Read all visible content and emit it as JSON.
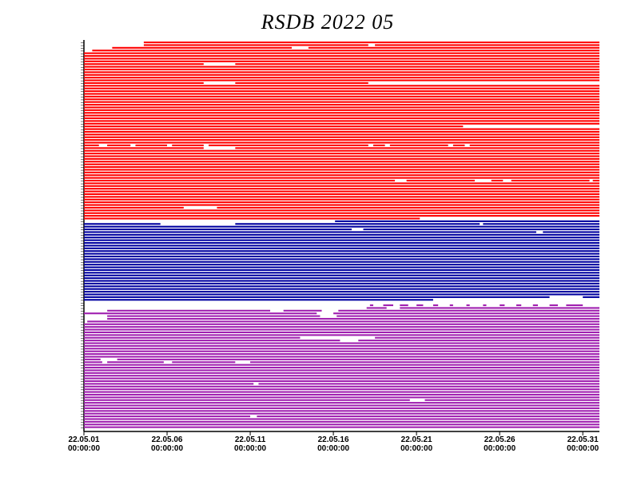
{
  "chart_data": {
    "type": "timeline",
    "title": "RSDB  2022  05",
    "xlim": [
      1,
      32
    ],
    "xticks": [
      {
        "value": 1,
        "label": "22.05.01",
        "time": "00:00:00"
      },
      {
        "value": 6,
        "label": "22.05.06",
        "time": "00:00:00"
      },
      {
        "value": 11,
        "label": "22.05.11",
        "time": "00:00:00"
      },
      {
        "value": 16,
        "label": "22.05.16",
        "time": "00:00:00"
      },
      {
        "value": 21,
        "label": "22.05.21",
        "time": "00:00:00"
      },
      {
        "value": 26,
        "label": "22.05.26",
        "time": "00:00:00"
      },
      {
        "value": 31,
        "label": "22.05.31",
        "time": "00:00:00"
      }
    ],
    "series": [
      {
        "color": "#ff0000",
        "rows": [
          [
            [
              4.6,
              32
            ]
          ],
          [
            [
              4.6,
              18.1
            ],
            [
              18.5,
              32
            ]
          ],
          [
            [
              2.7,
              13.5
            ],
            [
              14.5,
              32
            ]
          ],
          [
            [
              1.5,
              32
            ]
          ],
          [
            [
              1,
              32
            ]
          ],
          [
            [
              1,
              32
            ]
          ],
          [
            [
              1,
              32
            ]
          ],
          [
            [
              1,
              32
            ]
          ],
          [
            [
              1,
              8.2
            ],
            [
              10.1,
              32
            ]
          ],
          [
            [
              1,
              32
            ]
          ],
          [
            [
              1,
              32
            ]
          ],
          [
            [
              1,
              32
            ]
          ],
          [
            [
              1,
              32
            ]
          ],
          [
            [
              1,
              32
            ]
          ],
          [
            [
              1,
              32
            ]
          ],
          [
            [
              1,
              8.2
            ],
            [
              10.1,
              18.1
            ]
          ],
          [
            [
              1,
              32
            ]
          ],
          [
            [
              1,
              32
            ]
          ],
          [
            [
              1,
              32
            ]
          ],
          [
            [
              1,
              32
            ]
          ],
          [
            [
              1,
              32
            ]
          ],
          [
            [
              1,
              32
            ]
          ],
          [
            [
              1,
              32
            ]
          ],
          [
            [
              1,
              32
            ]
          ],
          [
            [
              1,
              32
            ]
          ],
          [
            [
              1,
              32
            ]
          ],
          [
            [
              1,
              32
            ]
          ],
          [
            [
              1,
              32
            ]
          ],
          [
            [
              1,
              32
            ]
          ],
          [
            [
              1,
              32
            ]
          ],
          [
            [
              1,
              32
            ]
          ],
          [
            [
              1,
              23.8
            ]
          ],
          [
            [
              1,
              32
            ]
          ],
          [
            [
              1,
              32
            ]
          ],
          [
            [
              1,
              32
            ]
          ],
          [
            [
              1,
              32
            ]
          ],
          [
            [
              1,
              32
            ]
          ],
          [
            [
              1,
              32
            ]
          ],
          [
            [
              1,
              1.9
            ],
            [
              2.4,
              3.8
            ],
            [
              4.1,
              6
            ],
            [
              6.3,
              8.2
            ],
            [
              8.5,
              18.1
            ],
            [
              18.4,
              19.1
            ],
            [
              19.4,
              22.9
            ],
            [
              23.2,
              23.9
            ],
            [
              24.2,
              32
            ]
          ],
          [
            [
              1,
              8.2
            ],
            [
              10.1,
              32
            ]
          ],
          [
            [
              1,
              32
            ]
          ],
          [
            [
              1,
              32
            ]
          ],
          [
            [
              1,
              32
            ]
          ],
          [
            [
              1,
              32
            ]
          ],
          [
            [
              1,
              32
            ]
          ],
          [
            [
              1,
              32
            ]
          ],
          [
            [
              1,
              32
            ]
          ],
          [
            [
              1,
              32
            ]
          ],
          [
            [
              1,
              32
            ]
          ],
          [
            [
              1,
              32
            ]
          ],
          [
            [
              1,
              32
            ]
          ],
          [
            [
              1,
              19.7
            ],
            [
              20.4,
              24.5
            ],
            [
              25.5,
              26.2
            ],
            [
              26.7,
              31.4
            ],
            [
              31.6,
              32
            ]
          ],
          [
            [
              1,
              32
            ]
          ],
          [
            [
              1,
              32
            ]
          ],
          [
            [
              1,
              32
            ]
          ],
          [
            [
              1,
              32
            ]
          ],
          [
            [
              1,
              32
            ]
          ],
          [
            [
              1,
              32
            ]
          ],
          [
            [
              1,
              32
            ]
          ],
          [
            [
              1,
              32
            ]
          ],
          [
            [
              1,
              32
            ]
          ],
          [
            [
              1,
              7
            ],
            [
              9,
              32
            ]
          ],
          [
            [
              1,
              32
            ]
          ],
          [
            [
              1,
              32
            ]
          ],
          [
            [
              1,
              32
            ]
          ],
          [
            [
              1,
              21.2
            ]
          ]
        ]
      },
      {
        "color": "#0000a0",
        "rows": [
          [
            [
              16.1,
              32
            ]
          ],
          [
            [
              1,
              5.6
            ],
            [
              10.1,
              24.8
            ],
            [
              25,
              32
            ]
          ],
          [
            [
              1,
              32
            ]
          ],
          [
            [
              1,
              17.1
            ],
            [
              17.8,
              32
            ]
          ],
          [
            [
              1,
              28.2
            ],
            [
              28.6,
              32
            ]
          ],
          [
            [
              1,
              32
            ]
          ],
          [
            [
              1,
              32
            ]
          ],
          [
            [
              1,
              32
            ]
          ],
          [
            [
              1,
              32
            ]
          ],
          [
            [
              1,
              32
            ]
          ],
          [
            [
              1,
              32
            ]
          ],
          [
            [
              1,
              32
            ]
          ],
          [
            [
              1,
              32
            ]
          ],
          [
            [
              1,
              32
            ]
          ],
          [
            [
              1,
              32
            ]
          ],
          [
            [
              1,
              32
            ]
          ],
          [
            [
              1,
              32
            ]
          ],
          [
            [
              1,
              32
            ]
          ],
          [
            [
              1,
              32
            ]
          ],
          [
            [
              1,
              32
            ]
          ],
          [
            [
              1,
              32
            ]
          ],
          [
            [
              1,
              32
            ]
          ],
          [
            [
              1,
              32
            ]
          ],
          [
            [
              1,
              32
            ]
          ],
          [
            [
              1,
              32
            ]
          ],
          [
            [
              1,
              32
            ]
          ],
          [
            [
              1,
              32
            ]
          ],
          [
            [
              1,
              32
            ]
          ],
          [
            [
              1,
              29
            ],
            [
              31,
              32
            ]
          ],
          [
            [
              1,
              22
            ]
          ]
        ]
      },
      {
        "color": "#a020b0",
        "rows": [
          [],
          [
            [
              18.2,
              18.4
            ],
            [
              19,
              19.6
            ],
            [
              20,
              20.5
            ],
            [
              21,
              21.4
            ],
            [
              22,
              22.3
            ],
            [
              23,
              23.2
            ],
            [
              24,
              24.2
            ],
            [
              25,
              25.2
            ],
            [
              26,
              26.3
            ],
            [
              27,
              27.3
            ],
            [
              28,
              28.3
            ],
            [
              29,
              29.5
            ],
            [
              30,
              31
            ]
          ],
          [
            [
              18,
              19.2
            ],
            [
              20,
              32
            ]
          ],
          [
            [
              2.4,
              12.2
            ],
            [
              13,
              15.3
            ],
            [
              16.3,
              32
            ]
          ],
          [
            [
              1,
              15
            ],
            [
              16,
              32
            ]
          ],
          [
            [
              2.4,
              15.2
            ],
            [
              16.2,
              32
            ]
          ],
          [
            [
              2.4,
              32
            ]
          ],
          [
            [
              1.2,
              32
            ]
          ],
          [
            [
              1,
              32
            ]
          ],
          [
            [
              1,
              32
            ]
          ],
          [
            [
              1,
              32
            ]
          ],
          [
            [
              1,
              32
            ]
          ],
          [
            [
              1,
              32
            ]
          ],
          [
            [
              1,
              14
            ],
            [
              18.5,
              32
            ]
          ],
          [
            [
              1,
              16.4
            ],
            [
              17.5,
              32
            ]
          ],
          [
            [
              1,
              32
            ]
          ],
          [
            [
              1,
              32
            ]
          ],
          [
            [
              1,
              32
            ]
          ],
          [
            [
              1,
              32
            ]
          ],
          [
            [
              1,
              32
            ]
          ],
          [
            [
              1,
              32
            ]
          ],
          [
            [
              1,
              2
            ],
            [
              3,
              32
            ]
          ],
          [
            [
              1,
              2.1
            ],
            [
              2.4,
              5.8
            ],
            [
              6.3,
              10.1
            ],
            [
              11,
              32
            ]
          ],
          [
            [
              1,
              32
            ]
          ],
          [
            [
              1,
              32
            ]
          ],
          [
            [
              1,
              32
            ]
          ],
          [
            [
              1,
              32
            ]
          ],
          [
            [
              1,
              32
            ]
          ],
          [
            [
              1,
              32
            ]
          ],
          [
            [
              1,
              32
            ]
          ],
          [
            [
              1,
              11.2
            ],
            [
              11.5,
              32
            ]
          ],
          [
            [
              1,
              32
            ]
          ],
          [
            [
              1,
              32
            ]
          ],
          [
            [
              1,
              32
            ]
          ],
          [
            [
              1,
              32
            ]
          ],
          [
            [
              1,
              32
            ]
          ],
          [
            [
              1,
              20.6
            ],
            [
              21.5,
              32
            ]
          ],
          [
            [
              1,
              32
            ]
          ],
          [
            [
              1,
              32
            ]
          ],
          [
            [
              1,
              32
            ]
          ],
          [
            [
              1,
              32
            ]
          ],
          [
            [
              1,
              32
            ]
          ],
          [
            [
              1,
              11
            ],
            [
              11.4,
              32
            ]
          ],
          [
            [
              1,
              32
            ]
          ],
          [
            [
              1,
              32
            ]
          ],
          [
            [
              1,
              32
            ]
          ],
          [
            [
              1,
              32
            ]
          ]
        ]
      }
    ]
  }
}
